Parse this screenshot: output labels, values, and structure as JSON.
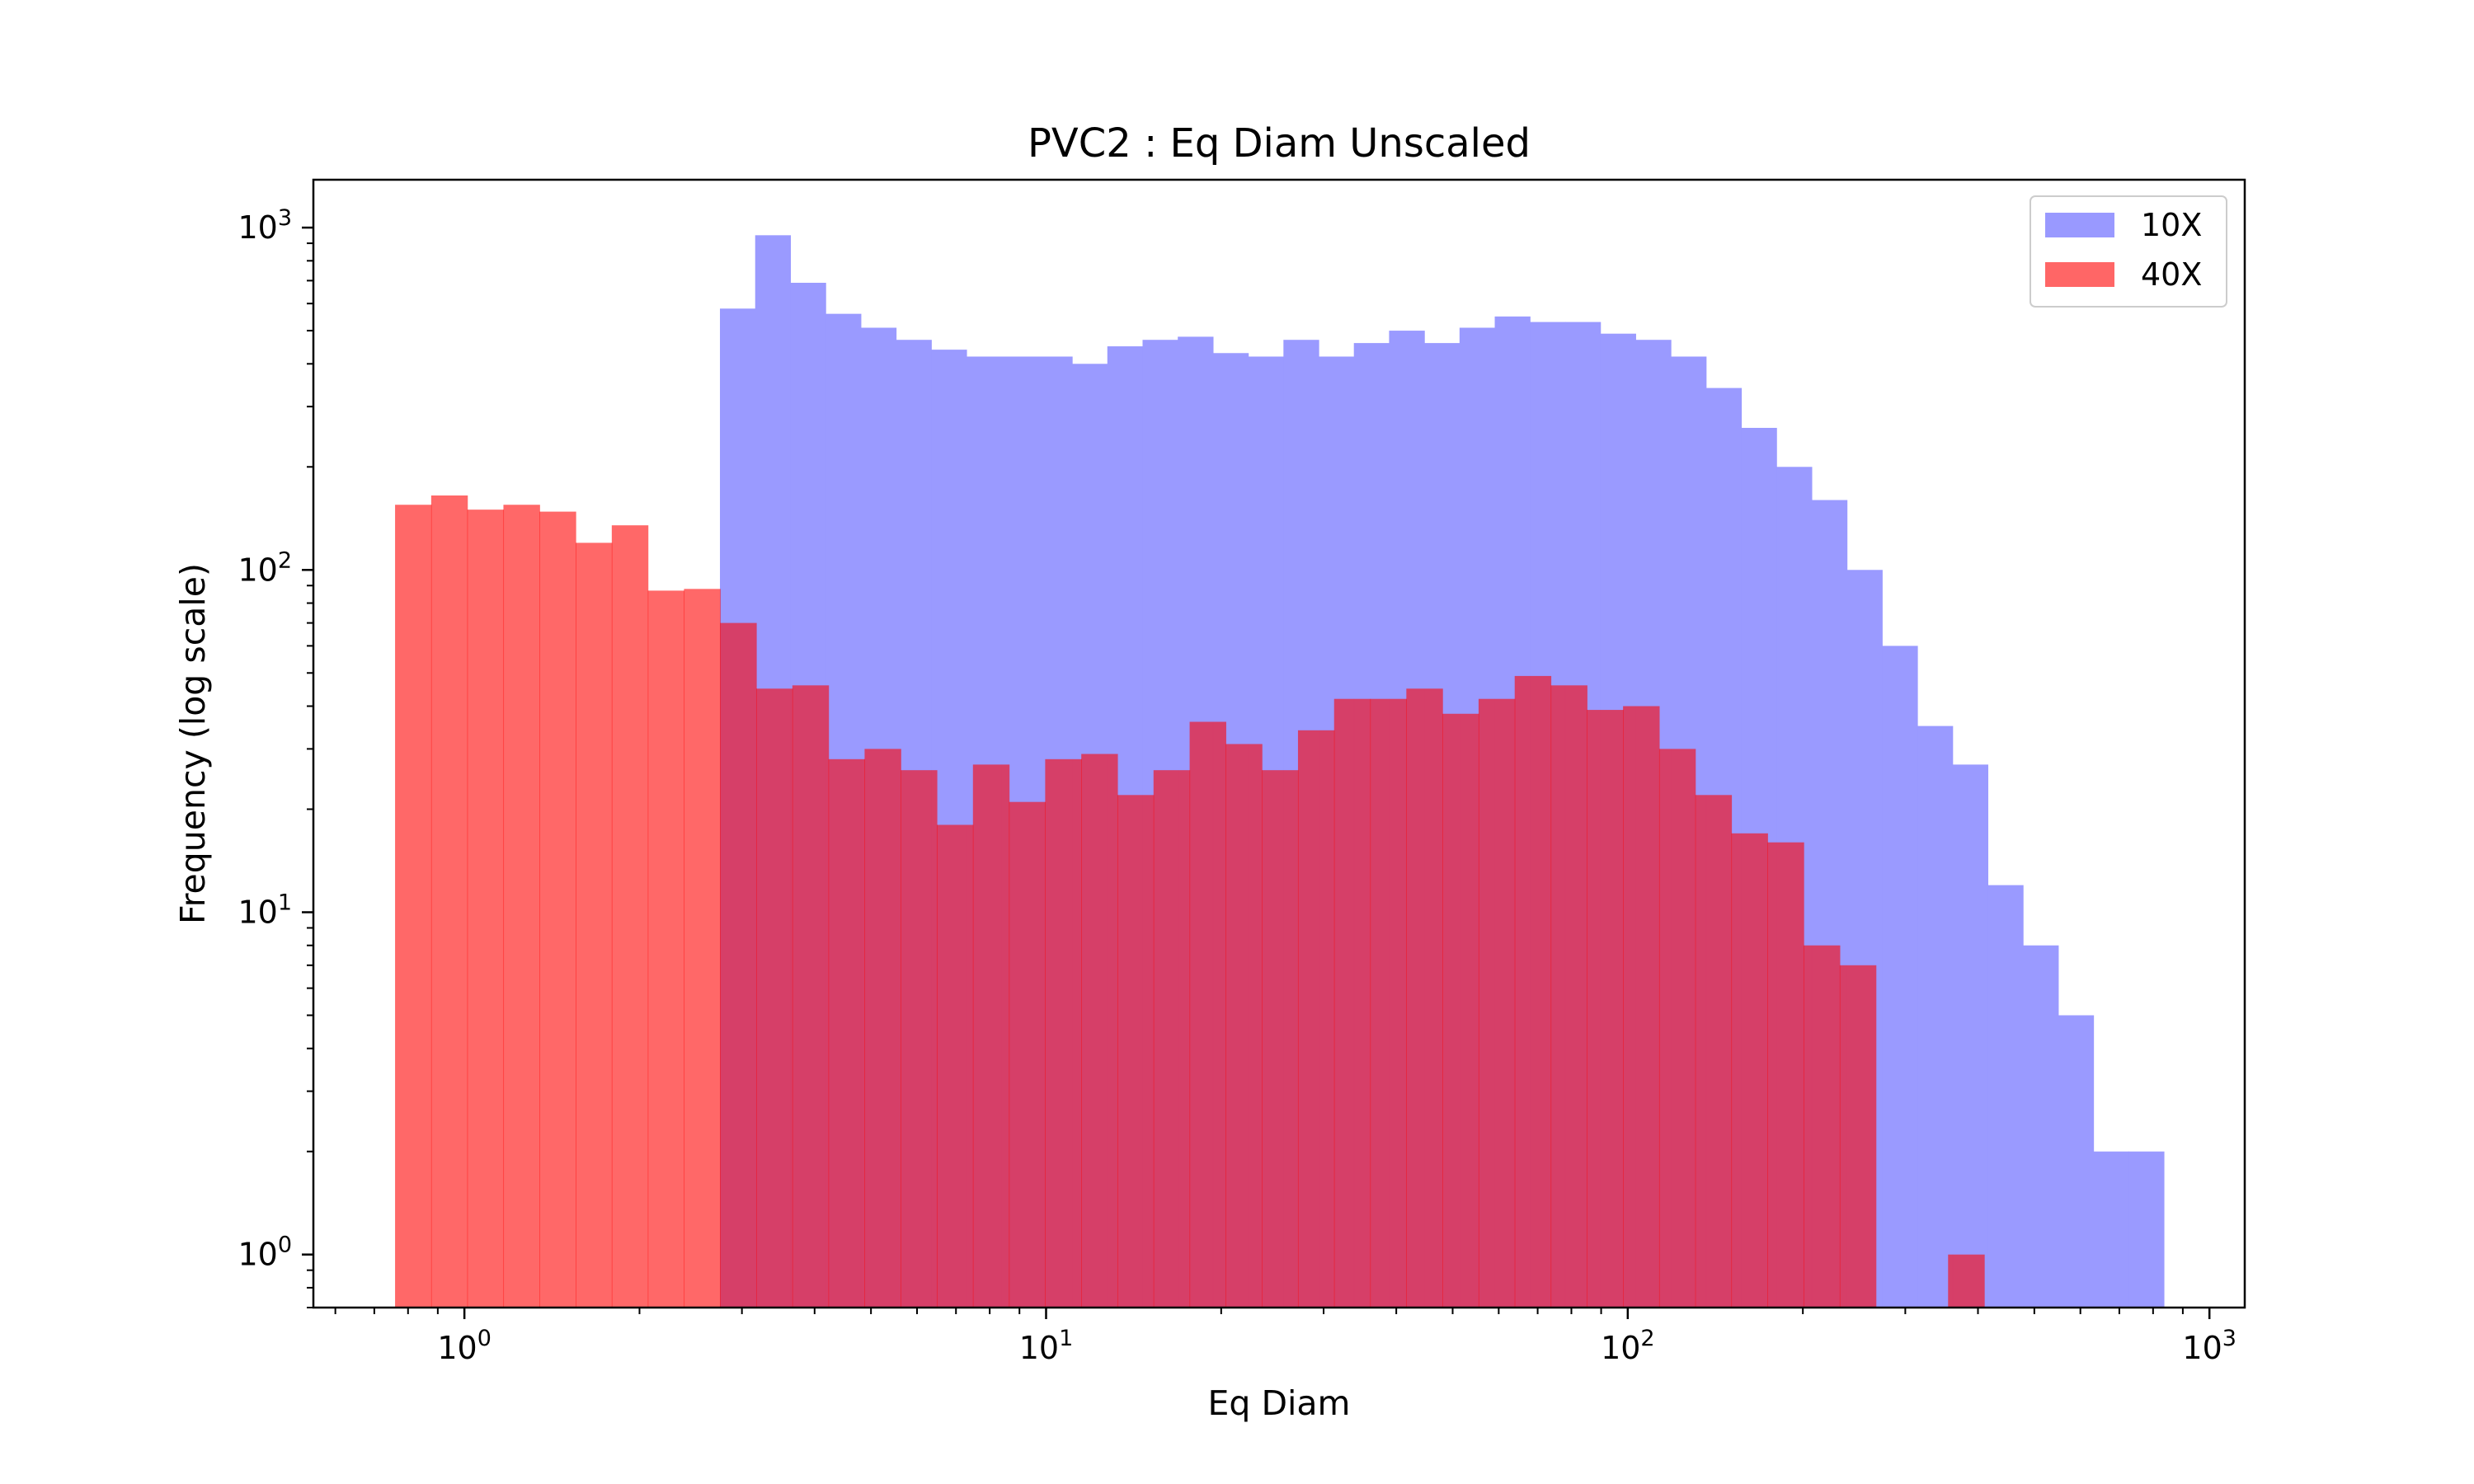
{
  "chart_data": {
    "type": "bar",
    "title": "PVC2 : Eq Diam Unscaled",
    "xlabel": "Eq Diam",
    "ylabel": "Frequency (log scale)",
    "x_scale": "log",
    "y_scale": "log",
    "xlim": [
      0.55,
      1150
    ],
    "ylim": [
      0.7,
      1380
    ],
    "x_ticks": [
      {
        "base": "10",
        "exp": "0",
        "value": 1
      },
      {
        "base": "10",
        "exp": "1",
        "value": 10
      },
      {
        "base": "10",
        "exp": "2",
        "value": 100
      },
      {
        "base": "10",
        "exp": "3",
        "value": 1000
      }
    ],
    "y_ticks": [
      {
        "base": "10",
        "exp": "0",
        "value": 1
      },
      {
        "base": "10",
        "exp": "1",
        "value": 10
      },
      {
        "base": "10",
        "exp": "2",
        "value": 100
      },
      {
        "base": "10",
        "exp": "3",
        "value": 1000
      }
    ],
    "grid": false,
    "legend": {
      "position": "top-right"
    },
    "series": [
      {
        "name": "10X",
        "color": "#9999ff",
        "bin_start": 2.75,
        "bin_end": 835,
        "values": [
          580,
          950,
          690,
          560,
          510,
          470,
          440,
          420,
          420,
          420,
          400,
          450,
          470,
          480,
          430,
          420,
          470,
          420,
          460,
          500,
          460,
          510,
          550,
          530,
          530,
          490,
          470,
          420,
          340,
          260,
          200,
          160,
          100,
          60,
          35,
          27,
          12,
          8,
          5,
          2,
          2
        ]
      },
      {
        "name": "40X",
        "color": "#ff6666",
        "bin_start": 0.76,
        "bin_end": 410,
        "values": [
          155,
          165,
          150,
          155,
          148,
          120,
          135,
          87,
          88,
          70,
          45,
          46,
          28,
          30,
          26,
          18,
          27,
          21,
          28,
          29,
          22,
          26,
          36,
          31,
          26,
          34,
          42,
          42,
          45,
          38,
          42,
          49,
          46,
          39,
          40,
          30,
          22,
          17,
          16,
          8,
          7,
          0,
          0,
          1
        ]
      }
    ]
  }
}
